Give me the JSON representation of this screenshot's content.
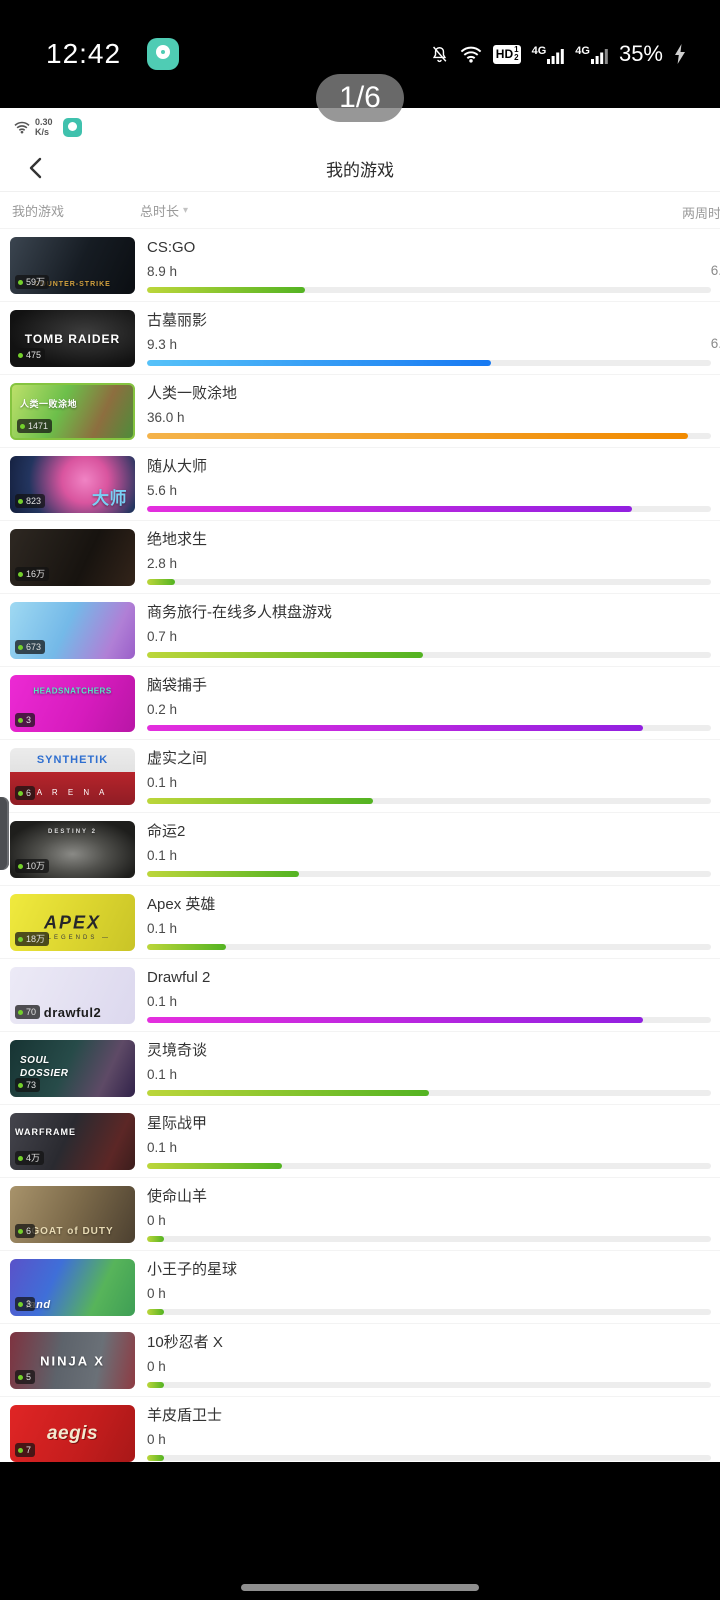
{
  "status_bar": {
    "time": "12:42",
    "battery_percent": "35%",
    "network_type_a": "4G",
    "network_type_b": "4G",
    "hd_label": "HD",
    "hd_sim1": "1",
    "hd_sim2": "2"
  },
  "pager": {
    "label": "1/6"
  },
  "sub_status": {
    "speed_value": "0.30",
    "speed_unit": "K/s"
  },
  "header": {
    "title": "我的游戏"
  },
  "filter_bar": {
    "my_games_label": "我的游戏",
    "sort_label": "总时长",
    "sort_caret": "▾",
    "two_week_label": "两周时长"
  },
  "colors": {
    "bar_green_start": "#bcd63a",
    "bar_green_end": "#53b322",
    "bar_blue_start": "#56c2f9",
    "bar_blue_end": "#1779f2",
    "bar_orange_start": "#f4b34a",
    "bar_orange_end": "#f18a00",
    "bar_purple_start": "#e42ede",
    "bar_purple_end": "#9220e0",
    "bar_track": "#ededed",
    "online_dot": "#74d02c",
    "app_icon_teal": "#4fccb4"
  },
  "games": [
    {
      "title": "CS:GO",
      "hours": "8.9 h",
      "two_week": "6.",
      "badge": "59万",
      "progress": 28,
      "bar": "green",
      "thumb_style": "t1",
      "thumb_label": "COUNTER-STRIKE"
    },
    {
      "title": "古墓丽影",
      "hours": "9.3 h",
      "two_week": "6.",
      "badge": "475",
      "progress": 61,
      "bar": "blue",
      "thumb_style": "t2",
      "thumb_label": "TOMB RAIDER"
    },
    {
      "title": "人类一败涂地",
      "hours": "36.0 h",
      "badge": "1471",
      "progress": 96,
      "bar": "orange",
      "thumb_style": "t3",
      "thumb_label": "人类一败涂地"
    },
    {
      "title": "随从大师",
      "hours": "5.6 h",
      "badge": "823",
      "progress": 86,
      "bar": "purple",
      "thumb_style": "t4",
      "thumb_label": "大师"
    },
    {
      "title": "绝地求生",
      "hours": "2.8 h",
      "badge": "16万",
      "progress": 5,
      "bar": "green",
      "thumb_style": "t5",
      "thumb_label": ""
    },
    {
      "title": "商务旅行-在线多人棋盘游戏",
      "hours": "0.7 h",
      "badge": "673",
      "progress": 49,
      "bar": "green",
      "thumb_style": "t6",
      "thumb_label": ""
    },
    {
      "title": "脑袋捕手",
      "hours": "0.2 h",
      "badge": "3",
      "progress": 88,
      "bar": "purple",
      "thumb_style": "t7",
      "thumb_label": "HEADSNATCHERS"
    },
    {
      "title": "虚实之间",
      "hours": "0.1 h",
      "badge": "6",
      "progress": 40,
      "bar": "green",
      "thumb_style": "t8",
      "thumb_label": "SYNTHETIK",
      "thumb_label2": "A R E N A"
    },
    {
      "title": "命运2",
      "hours": "0.1 h",
      "badge": "10万",
      "progress": 27,
      "bar": "green",
      "thumb_style": "t9",
      "thumb_label": "DESTINY 2"
    },
    {
      "title": "Apex 英雄",
      "hours": "0.1 h",
      "badge": "18万",
      "progress": 14,
      "bar": "green",
      "thumb_style": "t10",
      "thumb_label": "APEX",
      "thumb_label2": "— LEGENDS —"
    },
    {
      "title": "Drawful 2",
      "hours": "0.1 h",
      "badge": "70",
      "progress": 88,
      "bar": "purple",
      "thumb_style": "t11",
      "thumb_label": "drawful2"
    },
    {
      "title": "灵境奇谈",
      "hours": "0.1 h",
      "badge": "73",
      "progress": 50,
      "bar": "green",
      "thumb_style": "t12",
      "thumb_label": "SOUL DOSSIER"
    },
    {
      "title": "星际战甲",
      "hours": "0.1 h",
      "badge": "4万",
      "progress": 24,
      "bar": "green",
      "thumb_style": "t13",
      "thumb_label": "WARFRAME"
    },
    {
      "title": "使命山羊",
      "hours": "0 h",
      "badge": "6",
      "progress": 3,
      "bar": "green",
      "thumb_style": "t14",
      "thumb_label": "GOAT of DUTY"
    },
    {
      "title": "小王子的星球",
      "hours": "0 h",
      "badge": "3",
      "progress": 3,
      "bar": "green",
      "thumb_style": "t15",
      "thumb_label": "land"
    },
    {
      "title": "10秒忍者 X",
      "hours": "0 h",
      "badge": "5",
      "progress": 3,
      "bar": "green",
      "thumb_style": "t16",
      "thumb_label": "NINJA X"
    },
    {
      "title": "羊皮盾卫士",
      "hours": "0 h",
      "badge": "7",
      "progress": 3,
      "bar": "green",
      "thumb_style": "t17",
      "thumb_label": "aegis"
    }
  ]
}
